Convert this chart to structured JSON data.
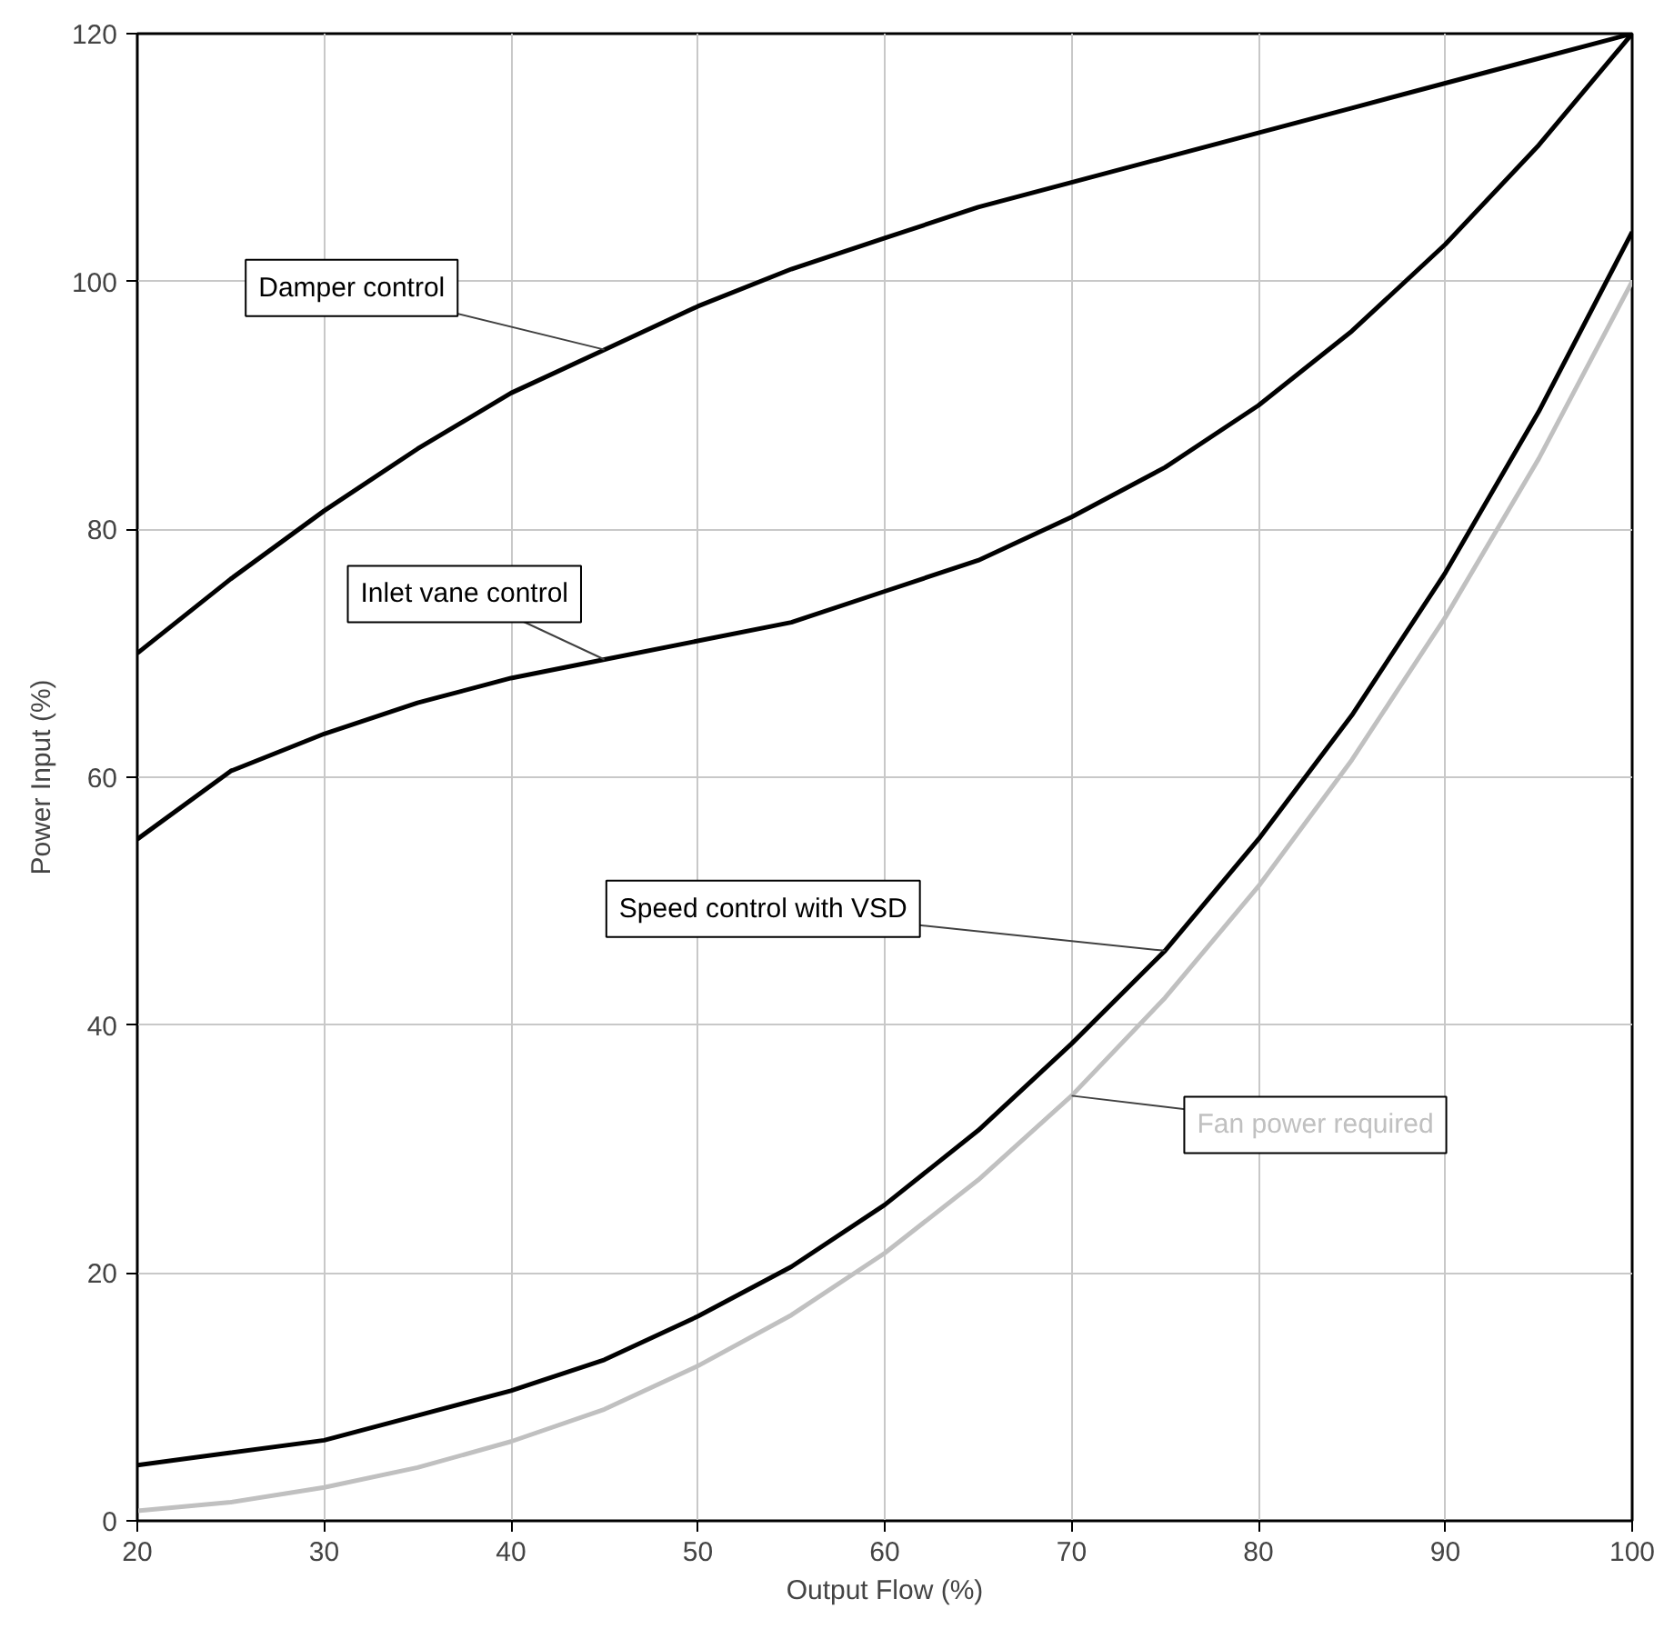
{
  "chart_data": {
    "type": "line",
    "xlabel": "Output Flow (%)",
    "ylabel": "Power Input (%)",
    "x": [
      20,
      25,
      30,
      35,
      40,
      45,
      50,
      55,
      60,
      65,
      70,
      75,
      80,
      85,
      90,
      95,
      100
    ],
    "xlim": [
      20,
      100
    ],
    "xticks": [
      20,
      30,
      40,
      50,
      60,
      70,
      80,
      90,
      100
    ],
    "ylim": [
      0,
      120
    ],
    "yticks": [
      0,
      20,
      40,
      60,
      80,
      100,
      120
    ],
    "grid": true,
    "series": [
      {
        "name": "Damper control",
        "color": "#000000",
        "values": [
          70,
          76,
          81.5,
          86.5,
          91,
          94.5,
          98,
          101,
          103.5,
          106,
          108,
          110,
          112,
          114,
          116,
          118,
          120
        ]
      },
      {
        "name": "Inlet vane control",
        "color": "#000000",
        "values": [
          55,
          60.5,
          63.5,
          66,
          68,
          69.5,
          71,
          72.5,
          75,
          77.5,
          81,
          85,
          90,
          96,
          103,
          111,
          120
        ]
      },
      {
        "name": "Speed control with VSD",
        "color": "#000000",
        "values": [
          4.5,
          5.5,
          6.5,
          8.5,
          10.5,
          13,
          16.5,
          20.5,
          25.5,
          31.5,
          38.5,
          46,
          55,
          65,
          76.5,
          89.5,
          104
        ]
      },
      {
        "name": "Fan power required",
        "color": "#c0c0c0",
        "values": [
          0.8,
          1.5,
          2.7,
          4.3,
          6.4,
          9,
          12.5,
          16.6,
          21.6,
          27.5,
          34.3,
          42.2,
          51.2,
          61.4,
          72.9,
          85.7,
          100
        ]
      }
    ]
  }
}
